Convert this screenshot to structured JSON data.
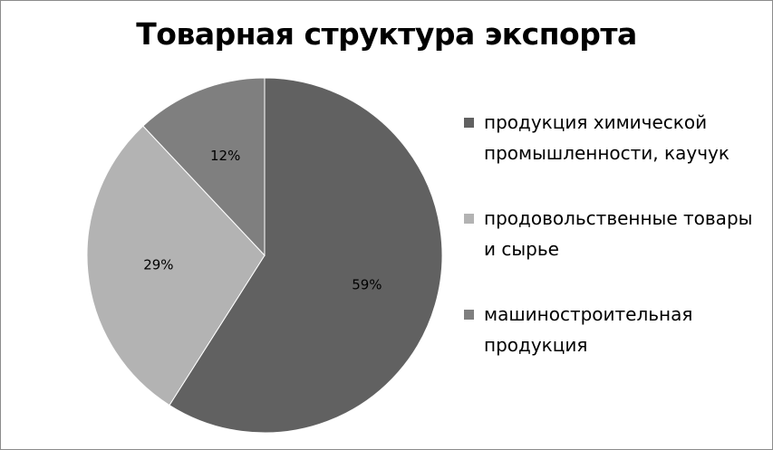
{
  "chart_data": {
    "type": "pie",
    "title": "Товарная структура экспорта",
    "categories": [
      "продукция химической промышленности, каучук",
      "продовольственные товары и сырье",
      "машиностроительная продукция"
    ],
    "values": [
      59,
      29,
      12
    ],
    "data_labels": [
      "59%",
      "29%",
      "12%"
    ],
    "colors": [
      "#616161",
      "#b3b3b3",
      "#7f7f7f"
    ],
    "start_position": "top",
    "direction": "clockwise",
    "legend_position": "right",
    "legend": [
      {
        "line1": "продукция химической",
        "line2": "промышленности, каучук"
      },
      {
        "line1": "продовольственные товары",
        "line2": "и сырье"
      },
      {
        "line1": "машиностроительная",
        "line2": "продукция"
      }
    ]
  }
}
